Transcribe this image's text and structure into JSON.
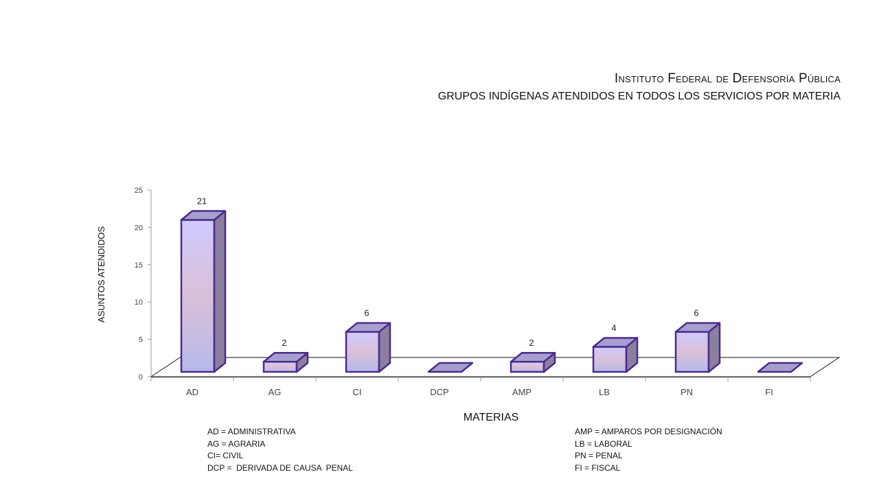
{
  "header": {
    "title": "Instituto Federal de Defensoría Pública",
    "subtitle": "GRUPOS INDÍGENAS ATENDIDOS EN TODOS LOS SERVICIOS POR MATERIA"
  },
  "chart_data": {
    "type": "bar",
    "categories": [
      "AD",
      "AG",
      "CI",
      "DCP",
      "AMP",
      "LB",
      "PN",
      "FI"
    ],
    "values": [
      21,
      2,
      6,
      0,
      2,
      4,
      6,
      0
    ],
    "data_labels": [
      "21",
      "2",
      "6",
      "",
      "2",
      "4",
      "6",
      ""
    ],
    "xlabel": "MATERIAS",
    "ylabel": "ASUNTOS ATENDIDOS",
    "ylim": [
      0,
      25
    ],
    "yticks": [
      0,
      5,
      10,
      15,
      20,
      25
    ],
    "grid": false,
    "style": "3d-column",
    "colors": {
      "front_top": "#cfcaff",
      "front_mid": "#d9c0d8",
      "front_bottom": "#b6b9ec",
      "side": "#8a7f9f",
      "top": "#a59fcf",
      "outline": "#4b2a8a"
    }
  },
  "legend": {
    "left": [
      "AD = ADMINISTRATIVA",
      "AG = AGRARIA",
      "CI= CIVIL",
      "DCP =  DERIVADA DE CAUSA  PENAL"
    ],
    "right": [
      "AMP = AMPAROS POR DESIGNACIÓN",
      "LB = LABORAL",
      "PN = PENAL",
      "FI = FISCAL"
    ]
  }
}
